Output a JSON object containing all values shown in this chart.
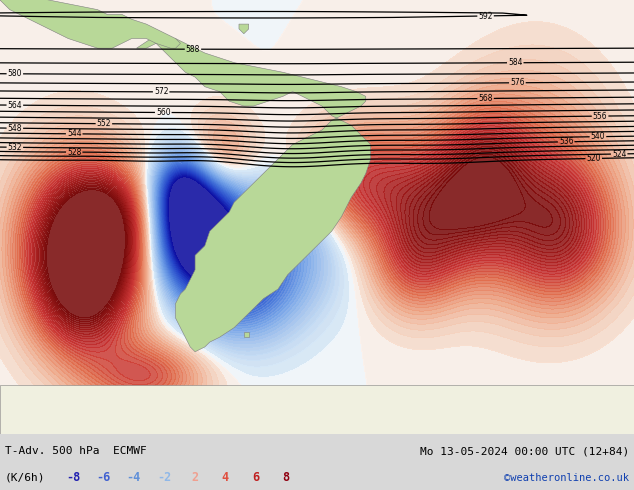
{
  "title_left": "T-Adv. 500 hPa  ECMWF",
  "title_right": "Mo 13-05-2024 00:00 UTC (12+84)",
  "legend_label": "(K/6h)",
  "legend_values": [
    "-8",
    "-6",
    "-4",
    "-2",
    "2",
    "4",
    "6",
    "8"
  ],
  "neg_colors": [
    "#2020b0",
    "#4060d0",
    "#6090d8",
    "#90b8e8"
  ],
  "pos_colors": [
    "#f0a090",
    "#e05040",
    "#c02020",
    "#900010"
  ],
  "watermark": "©weatheronline.co.uk",
  "watermark_color": "#1040b0",
  "bg_color": "#d8d8d8",
  "land_color": "#b8d898",
  "ocean_color": "#e8e8e8",
  "fig_width": 6.34,
  "fig_height": 4.9,
  "dpi": 100
}
